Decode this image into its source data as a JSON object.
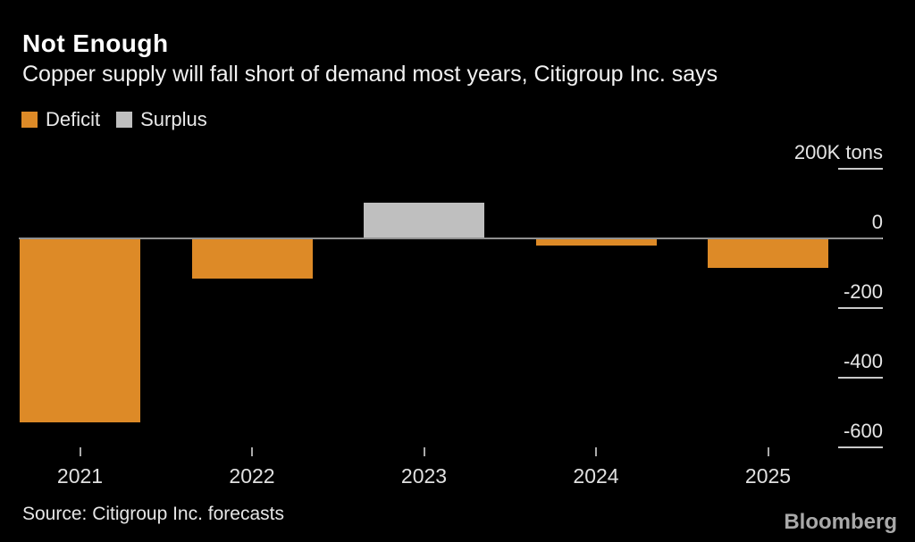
{
  "header": {
    "title": "Not Enough",
    "subtitle": "Copper supply will fall short of demand most years, Citigroup Inc. says"
  },
  "legend": [
    {
      "label": "Deficit",
      "color": "#dd8a27"
    },
    {
      "label": "Surplus",
      "color": "#bfbfbf"
    }
  ],
  "chart_data": {
    "type": "bar",
    "title": "Not Enough",
    "subtitle": "Copper supply will fall short of demand most years, Citigroup Inc. says",
    "categories": [
      "2021",
      "2022",
      "2023",
      "2024",
      "2025"
    ],
    "values": [
      -525,
      -113,
      101,
      -19,
      -82
    ],
    "unit": "K tons",
    "legend_mapping": {
      "negative_values": "Deficit",
      "positive_values": "Surplus"
    },
    "yticks": [
      {
        "value": 200,
        "label": "200K tons"
      },
      {
        "value": 0,
        "label": "0"
      },
      {
        "value": -200,
        "label": "-200"
      },
      {
        "value": -400,
        "label": "-400"
      },
      {
        "value": -600,
        "label": "-600"
      }
    ],
    "ylim": [
      -650,
      250
    ],
    "grid": "off",
    "legend_position": "top-left",
    "axis_side": "right"
  },
  "colors": {
    "background": "#000000",
    "deficit": "#dd8a27",
    "surplus": "#bfbfbf",
    "axis_line": "#909090",
    "tick": "#c9c9c9",
    "text": "#e6e6e6"
  },
  "footer": {
    "source": "Source: Citigroup Inc. forecasts",
    "brand": "Bloomberg"
  }
}
